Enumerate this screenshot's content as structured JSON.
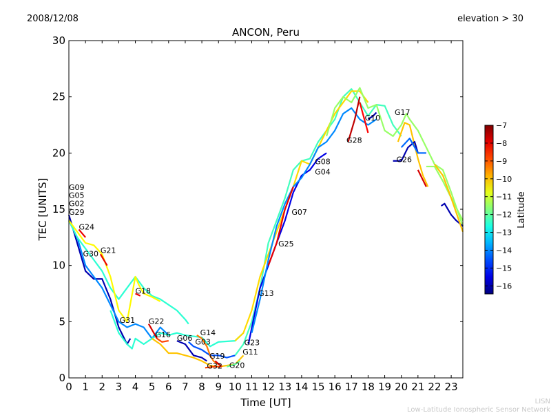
{
  "header": {
    "date": "2008/12/08",
    "filter": "elevation > 30"
  },
  "footer": {
    "org": "LISN",
    "org_full": "Low-Latitude Ionospheric Sensor Network"
  },
  "chart_data": {
    "type": "line",
    "title": "ANCON, Peru",
    "xlabel": "Time [UT]",
    "ylabel": "TEC [UNITS]",
    "xlim": [
      0,
      23.7
    ],
    "ylim": [
      0,
      30
    ],
    "xticks": [
      0,
      1,
      2,
      3,
      4,
      5,
      6,
      7,
      8,
      9,
      10,
      11,
      12,
      13,
      14,
      15,
      16,
      17,
      18,
      19,
      20,
      21,
      22,
      23
    ],
    "yticks": [
      0,
      5,
      10,
      15,
      20,
      25,
      30
    ],
    "grid": false,
    "colorbar": {
      "label": "Latitude",
      "range": [
        -16.45,
        -7
      ],
      "ticks": [
        -7,
        -8,
        -9,
        -10,
        -11,
        -12,
        -13,
        -14,
        -15,
        -16
      ],
      "colormap": "jet"
    },
    "series": [
      {
        "lat": -16.0,
        "points": [
          [
            0,
            14.5
          ],
          [
            0.5,
            12
          ],
          [
            1,
            9.5
          ],
          [
            1.5,
            8.8
          ],
          [
            2,
            8.8
          ],
          [
            2.5,
            7
          ],
          [
            3,
            4.5
          ],
          [
            3.5,
            3
          ],
          [
            3.7,
            3.5
          ]
        ]
      },
      {
        "lat": -14.0,
        "points": [
          [
            0,
            14
          ],
          [
            0.5,
            12.5
          ],
          [
            1,
            10
          ],
          [
            1.5,
            9
          ],
          [
            2,
            8
          ],
          [
            2.5,
            6.5
          ],
          [
            3,
            5
          ],
          [
            3.5,
            4.5
          ],
          [
            4,
            4.8
          ],
          [
            4.5,
            4.5
          ],
          [
            5,
            3.5
          ],
          [
            5.5,
            4.5
          ],
          [
            6,
            3.8
          ]
        ]
      },
      {
        "lat": -12.5,
        "points": [
          [
            0,
            14
          ],
          [
            0.5,
            12.5
          ],
          [
            1,
            11.5
          ],
          [
            1.5,
            10.5
          ],
          [
            2,
            9.5
          ],
          [
            2.5,
            8
          ],
          [
            3,
            7
          ],
          [
            3.5,
            8
          ],
          [
            4,
            9
          ],
          [
            4.5,
            8
          ],
          [
            5,
            7.3
          ],
          [
            5.5,
            7
          ],
          [
            6,
            6.5
          ],
          [
            6.5,
            6
          ],
          [
            7,
            5.2
          ],
          [
            7.2,
            4.8
          ]
        ]
      },
      {
        "lat": -10.5,
        "points": [
          [
            0,
            14
          ],
          [
            1,
            12
          ],
          [
            1.5,
            11.8
          ],
          [
            2,
            11
          ],
          [
            2.5,
            9
          ],
          [
            3,
            6
          ],
          [
            3.5,
            5
          ],
          [
            4,
            9
          ],
          [
            4.2,
            8.3
          ],
          [
            4.5,
            7.5
          ],
          [
            5,
            7.2
          ],
          [
            5.5,
            6.8
          ]
        ]
      },
      {
        "lat": -12.5,
        "points": [
          [
            2.5,
            6
          ],
          [
            3,
            4
          ],
          [
            3.5,
            3
          ],
          [
            3.8,
            2.6
          ],
          [
            4,
            3.5
          ],
          [
            4.5,
            3
          ],
          [
            5,
            3.5
          ],
          [
            5.5,
            4
          ],
          [
            6,
            3.8
          ],
          [
            6.5,
            4
          ],
          [
            7,
            3.8
          ],
          [
            7.5,
            3.7
          ],
          [
            8,
            3.6
          ],
          [
            8.5,
            2.8
          ],
          [
            9,
            3.2
          ],
          [
            10,
            3.3
          ],
          [
            10.5,
            4
          ]
        ]
      },
      {
        "lat": -8.0,
        "points": [
          [
            0.6,
            13.2
          ],
          [
            1,
            12.5
          ]
        ]
      },
      {
        "lat": -8.0,
        "points": [
          [
            1.9,
            11
          ],
          [
            2.3,
            10
          ]
        ]
      },
      {
        "lat": -8.0,
        "points": [
          [
            4,
            7.5
          ],
          [
            4.3,
            7.3
          ]
        ]
      },
      {
        "lat": -7.8,
        "points": [
          [
            4.8,
            4.8
          ],
          [
            5.3,
            3.5
          ]
        ]
      },
      {
        "lat": -8.8,
        "points": [
          [
            5.3,
            3.5
          ],
          [
            5.6,
            3.2
          ],
          [
            6,
            3.3
          ]
        ]
      },
      {
        "lat": -10.0,
        "points": [
          [
            5,
            3.5
          ],
          [
            5.5,
            3
          ],
          [
            6,
            2.2
          ],
          [
            6.5,
            2.2
          ],
          [
            7,
            2
          ],
          [
            7.5,
            1.8
          ],
          [
            8,
            1.5
          ],
          [
            8.5,
            1.1
          ],
          [
            9,
            1
          ],
          [
            10,
            1.2
          ],
          [
            10.5,
            2
          ]
        ]
      },
      {
        "lat": -16.0,
        "points": [
          [
            6.5,
            3.3
          ],
          [
            7,
            3
          ],
          [
            7.5,
            2
          ],
          [
            8,
            1.8
          ],
          [
            8.3,
            1.5
          ]
        ]
      },
      {
        "lat": -14.5,
        "points": [
          [
            7.2,
            3.2
          ],
          [
            7.5,
            2.8
          ],
          [
            8,
            2.5
          ],
          [
            8.5,
            2
          ],
          [
            9,
            2
          ],
          [
            9.5,
            1.8
          ],
          [
            10,
            2
          ]
        ]
      },
      {
        "lat": -9.3,
        "points": [
          [
            7.7,
            3.8
          ],
          [
            8,
            3.5
          ],
          [
            8.3,
            2.8
          ],
          [
            8.5,
            2
          ],
          [
            8.7,
            1.5
          ],
          [
            9,
            1.2
          ]
        ]
      },
      {
        "lat": -7.8,
        "points": [
          [
            8.8,
            1.5
          ],
          [
            9.2,
            1
          ]
        ]
      },
      {
        "lat": -8.8,
        "points": [
          [
            8.2,
            0.9
          ],
          [
            8.7,
            1
          ],
          [
            9.2,
            1
          ]
        ]
      },
      {
        "lat": -12.0,
        "points": [
          [
            9.5,
            1
          ],
          [
            10,
            1.2
          ],
          [
            10.3,
            1.5
          ]
        ]
      },
      {
        "lat": -12.3,
        "points": [
          [
            10,
            2
          ],
          [
            10.5,
            3
          ],
          [
            11,
            5
          ],
          [
            11.5,
            8
          ],
          [
            12,
            12
          ],
          [
            12.5,
            14
          ],
          [
            13,
            16
          ],
          [
            13.5,
            18.5
          ],
          [
            14,
            19.3
          ],
          [
            14.5,
            19.5
          ],
          [
            15,
            21
          ],
          [
            15.5,
            22
          ],
          [
            16,
            23
          ],
          [
            16.5,
            25
          ],
          [
            17,
            25.7
          ],
          [
            17.5,
            24.5
          ],
          [
            18,
            23.3
          ],
          [
            18.5,
            24.3
          ],
          [
            19,
            24.2
          ],
          [
            19.5,
            22.5
          ],
          [
            20,
            21.5
          ]
        ]
      },
      {
        "lat": -10.2,
        "points": [
          [
            10,
            3.3
          ],
          [
            10.5,
            4
          ],
          [
            11,
            6
          ],
          [
            11.5,
            9
          ],
          [
            12,
            11
          ],
          [
            12.5,
            13
          ],
          [
            13,
            15
          ],
          [
            13.5,
            17
          ],
          [
            14,
            19.3
          ],
          [
            14.5,
            19
          ],
          [
            15,
            20.5
          ],
          [
            15.5,
            22
          ],
          [
            16,
            23.5
          ],
          [
            16.5,
            24.5
          ],
          [
            17,
            25.5
          ],
          [
            17.5,
            25.5
          ],
          [
            18,
            24.5
          ]
        ]
      },
      {
        "lat": -15.5,
        "points": [
          [
            10.8,
            3
          ],
          [
            11.5,
            8
          ],
          [
            12,
            10
          ],
          [
            12.5,
            12
          ],
          [
            13,
            14
          ],
          [
            13.5,
            16.5
          ],
          [
            14,
            18
          ],
          [
            14.5,
            18.5
          ],
          [
            15,
            19.5
          ],
          [
            15.5,
            20
          ]
        ]
      },
      {
        "lat": -14.0,
        "points": [
          [
            11,
            4
          ],
          [
            11.5,
            7
          ],
          [
            12,
            10.5
          ],
          [
            12.5,
            13.5
          ],
          [
            13,
            15.5
          ],
          [
            13.5,
            17
          ],
          [
            14,
            17.8
          ],
          [
            14.5,
            19
          ],
          [
            15,
            20.5
          ],
          [
            15.5,
            21
          ],
          [
            16,
            22
          ],
          [
            16.5,
            23.5
          ],
          [
            17,
            24
          ],
          [
            17.5,
            23
          ],
          [
            18,
            22.5
          ],
          [
            18.5,
            23
          ]
        ]
      },
      {
        "lat": -11.5,
        "points": [
          [
            15.5,
            21.5
          ],
          [
            16,
            24
          ],
          [
            16.5,
            25
          ],
          [
            17,
            24.5
          ],
          [
            17.5,
            25.8
          ],
          [
            18,
            24
          ],
          [
            18.5,
            24.3
          ],
          [
            19,
            22
          ],
          [
            19.5,
            21.5
          ],
          [
            20,
            22.5
          ],
          [
            20.3,
            23.5
          ],
          [
            20.5,
            23
          ],
          [
            21,
            22
          ],
          [
            21.5,
            20.5
          ],
          [
            22,
            19
          ],
          [
            22.5,
            18.5
          ],
          [
            23,
            16.5
          ],
          [
            23.7,
            13.5
          ]
        ]
      },
      {
        "lat": -8.0,
        "points": [
          [
            12,
            10
          ],
          [
            12.5,
            12
          ],
          [
            13,
            15
          ],
          [
            13.5,
            17
          ]
        ]
      },
      {
        "lat": -7.6,
        "points": [
          [
            16.8,
            21
          ],
          [
            17.2,
            23
          ],
          [
            17.5,
            25
          ]
        ]
      },
      {
        "lat": -8.2,
        "points": [
          [
            17.5,
            24.5
          ],
          [
            18,
            21.8
          ]
        ]
      },
      {
        "lat": -16.0,
        "points": [
          [
            18,
            23
          ],
          [
            18.3,
            23.3
          ],
          [
            18.5,
            23.6
          ]
        ]
      },
      {
        "lat": -10.0,
        "points": [
          [
            19.8,
            21
          ],
          [
            20.2,
            22.7
          ],
          [
            20.5,
            22.5
          ],
          [
            21,
            19.5
          ],
          [
            21.3,
            18
          ],
          [
            21.6,
            17
          ]
        ]
      },
      {
        "lat": -7.8,
        "points": [
          [
            21,
            18.5
          ],
          [
            21.5,
            17
          ]
        ]
      },
      {
        "lat": -16.0,
        "points": [
          [
            19.5,
            19.3
          ],
          [
            20,
            19.3
          ],
          [
            20.4,
            20.5
          ],
          [
            20.8,
            21
          ],
          [
            21,
            20
          ]
        ]
      },
      {
        "lat": -14.3,
        "points": [
          [
            20,
            20.5
          ],
          [
            20.5,
            21.3
          ],
          [
            21,
            20
          ],
          [
            21.5,
            20
          ]
        ]
      },
      {
        "lat": -11.5,
        "points": [
          [
            21.5,
            18.8
          ],
          [
            22,
            18.8
          ],
          [
            22.5,
            17.5
          ],
          [
            23,
            16
          ],
          [
            23.7,
            14
          ]
        ]
      },
      {
        "lat": -16.0,
        "points": [
          [
            22.4,
            15.3
          ],
          [
            22.6,
            15.5
          ],
          [
            23,
            14.5
          ],
          [
            23.3,
            14
          ],
          [
            23.7,
            13.5
          ]
        ]
      },
      {
        "lat": -10.0,
        "points": [
          [
            22,
            19
          ],
          [
            22.5,
            18
          ],
          [
            23,
            16
          ],
          [
            23.7,
            13
          ]
        ]
      }
    ],
    "annotations": [
      {
        "text": "G09",
        "x": 0,
        "y": 15.6
      },
      {
        "text": "G05",
        "x": 0,
        "y": 15.2
      },
      {
        "text": "G02",
        "x": 0,
        "y": 14.9
      },
      {
        "text": "G29",
        "x": 0,
        "y": 14.5
      },
      {
        "text": "G24",
        "x": 0.6,
        "y": 13.2
      },
      {
        "text": "G30",
        "x": 0.85,
        "y": 10.8
      },
      {
        "text": "G21",
        "x": 1.9,
        "y": 11.1
      },
      {
        "text": "G18",
        "x": 4.0,
        "y": 7.5
      },
      {
        "text": "G31",
        "x": 3.05,
        "y": 4.9
      },
      {
        "text": "G22",
        "x": 4.8,
        "y": 4.8
      },
      {
        "text": "G16",
        "x": 5.2,
        "y": 3.6
      },
      {
        "text": "G06",
        "x": 6.5,
        "y": 3.3
      },
      {
        "text": "G03",
        "x": 7.1,
        "y": 3.1
      },
      {
        "text": "G14",
        "x": 7.9,
        "y": 3.8
      },
      {
        "text": "G19",
        "x": 8.45,
        "y": 1.7
      },
      {
        "text": "G32",
        "x": 8.3,
        "y": 0.95
      },
      {
        "text": "G20",
        "x": 9.65,
        "y": 0.9
      },
      {
        "text": "G23",
        "x": 10.55,
        "y": 2.9
      },
      {
        "text": "G11",
        "x": 10.45,
        "y": 2.2
      },
      {
        "text": "G13",
        "x": 11.4,
        "y": 7.3
      },
      {
        "text": "G25",
        "x": 12.6,
        "y": 11.7
      },
      {
        "text": "G07",
        "x": 13.4,
        "y": 14.5
      },
      {
        "text": "G08",
        "x": 14.8,
        "y": 19.0
      },
      {
        "text": "G04",
        "x": 14.8,
        "y": 18.1
      },
      {
        "text": "G28",
        "x": 16.7,
        "y": 20.9
      },
      {
        "text": "G10",
        "x": 17.8,
        "y": 22.9
      },
      {
        "text": "G17",
        "x": 19.6,
        "y": 23.4
      },
      {
        "text": "G26",
        "x": 19.7,
        "y": 19.2
      }
    ]
  }
}
